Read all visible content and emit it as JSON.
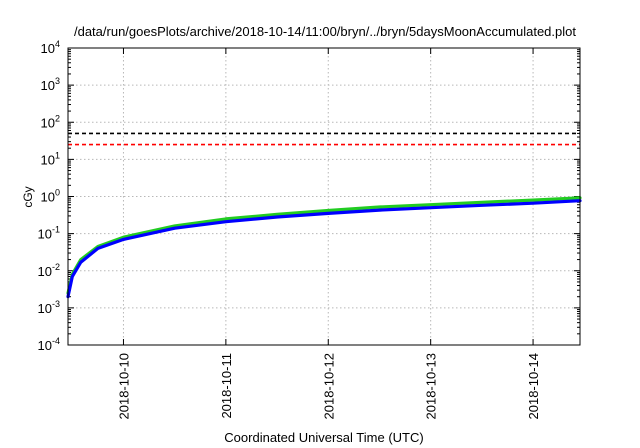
{
  "chart_data": {
    "type": "line",
    "title": "/data/run/goesPlots/archive/2018-10-14/11:00/bryn/../bryn/5daysMoonAccumulated.plot",
    "xlabel": "Coordinated Universal Time (UTC)",
    "ylabel": "cGy",
    "y_scale": "log",
    "ylim": [
      0.0001,
      10000
    ],
    "y_ticks": [
      {
        "value": 0.0001,
        "base": "10",
        "exp": "-4"
      },
      {
        "value": 0.001,
        "base": "10",
        "exp": "-3"
      },
      {
        "value": 0.01,
        "base": "10",
        "exp": "-2"
      },
      {
        "value": 0.1,
        "base": "10",
        "exp": "-1"
      },
      {
        "value": 1,
        "base": "10",
        "exp": "0"
      },
      {
        "value": 10,
        "base": "10",
        "exp": "1"
      },
      {
        "value": 100,
        "base": "10",
        "exp": "2"
      },
      {
        "value": 1000,
        "base": "10",
        "exp": "3"
      },
      {
        "value": 10000,
        "base": "10",
        "exp": "4"
      }
    ],
    "xlim": [
      "2018-10-09 11:00",
      "2018-10-14 11:00"
    ],
    "x_ticks": [
      "2018-10-10",
      "2018-10-11",
      "2018-10-12",
      "2018-10-13",
      "2018-10-14"
    ],
    "grid": true,
    "thresholds": [
      {
        "value": 50,
        "color": "#000000",
        "style": "dashed"
      },
      {
        "value": 25,
        "color": "#ff0000",
        "style": "dashed"
      }
    ],
    "series": [
      {
        "color": "#22cc22",
        "x": [
          "2018-10-09 11:00",
          "2018-10-09 12:00",
          "2018-10-09 14:00",
          "2018-10-09 18:00",
          "2018-10-10 00:00",
          "2018-10-10 12:00",
          "2018-10-11 00:00",
          "2018-10-11 12:00",
          "2018-10-12 00:00",
          "2018-10-12 12:00",
          "2018-10-13 00:00",
          "2018-10-13 12:00",
          "2018-10-14 00:00",
          "2018-10-14 11:00"
        ],
        "values": [
          0.0025,
          0.008,
          0.02,
          0.045,
          0.08,
          0.16,
          0.25,
          0.33,
          0.42,
          0.52,
          0.6,
          0.7,
          0.8,
          0.92
        ]
      },
      {
        "color": "#0000ff",
        "x": [
          "2018-10-09 11:00",
          "2018-10-09 12:00",
          "2018-10-09 14:00",
          "2018-10-09 18:00",
          "2018-10-10 00:00",
          "2018-10-10 12:00",
          "2018-10-11 00:00",
          "2018-10-11 12:00",
          "2018-10-12 00:00",
          "2018-10-12 12:00",
          "2018-10-13 00:00",
          "2018-10-13 12:00",
          "2018-10-14 00:00",
          "2018-10-14 11:00"
        ],
        "values": [
          0.002,
          0.007,
          0.017,
          0.04,
          0.07,
          0.14,
          0.21,
          0.28,
          0.35,
          0.43,
          0.5,
          0.58,
          0.66,
          0.77
        ]
      }
    ]
  }
}
